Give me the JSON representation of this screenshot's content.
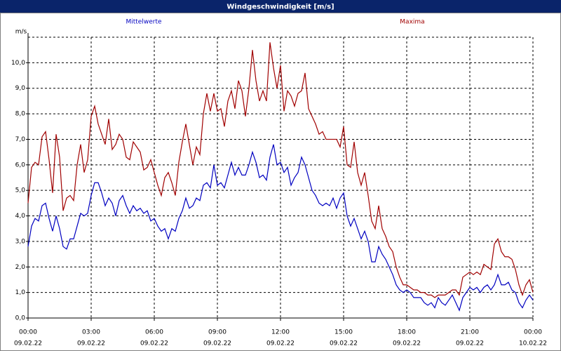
{
  "chart_data": {
    "type": "line",
    "title": "Windgeschwindigkeit [m/s]",
    "y_label": "m/s",
    "x": [
      0,
      10,
      20,
      30,
      40,
      50,
      60,
      70,
      80,
      90,
      100,
      110,
      120,
      130,
      140,
      150,
      160,
      170,
      180,
      190,
      200,
      210,
      220,
      230,
      240,
      250,
      260,
      270,
      280,
      290,
      300,
      310,
      320,
      330,
      340,
      350,
      360,
      370,
      380,
      390,
      400,
      410,
      420,
      430,
      440,
      450,
      460,
      470,
      480,
      490,
      500,
      510,
      520,
      530,
      540,
      550,
      560,
      570,
      580,
      590,
      600,
      610,
      620,
      630,
      640,
      650,
      660,
      670,
      680,
      690,
      700,
      710,
      720,
      730,
      740,
      750,
      760,
      770,
      780,
      790,
      800,
      810,
      820,
      830,
      840,
      850,
      860,
      870,
      880,
      890,
      900,
      910,
      920,
      930,
      940,
      950,
      960,
      970,
      980,
      990,
      1000,
      1010,
      1020,
      1030,
      1040,
      1050,
      1060,
      1070,
      1080,
      1090,
      1100,
      1110,
      1120,
      1130,
      1140,
      1150,
      1160,
      1170,
      1180,
      1190,
      1200,
      1210,
      1220,
      1230,
      1240,
      1250,
      1260,
      1270,
      1280,
      1290,
      1300,
      1310,
      1320,
      1330,
      1340,
      1350,
      1360,
      1370,
      1380,
      1390,
      1400,
      1410,
      1420,
      1430,
      1440
    ],
    "series": [
      {
        "name": "Mittelwerte",
        "color": "#0000c0",
        "values": [
          2.8,
          3.6,
          3.9,
          3.8,
          4.4,
          4.5,
          3.9,
          3.4,
          4.0,
          3.5,
          2.8,
          2.7,
          3.1,
          3.1,
          3.6,
          4.1,
          4.0,
          4.1,
          4.8,
          5.3,
          5.3,
          4.9,
          4.4,
          4.7,
          4.5,
          4.0,
          4.6,
          4.8,
          4.4,
          4.1,
          4.4,
          4.2,
          4.3,
          4.1,
          4.2,
          3.8,
          3.9,
          3.6,
          3.4,
          3.5,
          3.1,
          3.5,
          3.4,
          3.9,
          4.2,
          4.7,
          4.3,
          4.4,
          4.7,
          4.6,
          5.2,
          5.3,
          5.1,
          6.0,
          5.2,
          5.3,
          5.1,
          5.6,
          6.1,
          5.6,
          5.9,
          5.6,
          5.6,
          6.0,
          6.5,
          6.1,
          5.5,
          5.6,
          5.4,
          6.3,
          6.8,
          6.0,
          6.1,
          5.7,
          5.9,
          5.2,
          5.5,
          5.7,
          6.3,
          6.0,
          5.5,
          5.0,
          4.8,
          4.5,
          4.4,
          4.5,
          4.4,
          4.7,
          4.3,
          4.7,
          4.9,
          4.0,
          3.6,
          3.9,
          3.5,
          3.1,
          3.4,
          3.0,
          2.2,
          2.2,
          2.8,
          2.5,
          2.3,
          2.0,
          1.7,
          1.3,
          1.1,
          1.0,
          1.1,
          1.0,
          0.8,
          0.8,
          0.8,
          0.6,
          0.5,
          0.6,
          0.4,
          0.8,
          0.6,
          0.5,
          0.7,
          0.9,
          0.6,
          0.3,
          0.8,
          1.0,
          1.2,
          1.1,
          1.2,
          1.0,
          1.2,
          1.3,
          1.1,
          1.3,
          1.7,
          1.3,
          1.3,
          1.4,
          1.1,
          1.0,
          0.6,
          0.4,
          0.7,
          0.9,
          0.7
        ]
      },
      {
        "name": "Maxima",
        "color": "#a00000",
        "values": [
          4.5,
          5.9,
          6.1,
          6.0,
          7.1,
          7.3,
          6.2,
          4.9,
          7.2,
          6.3,
          4.2,
          4.7,
          4.8,
          4.6,
          6.0,
          6.8,
          5.7,
          6.2,
          7.9,
          8.3,
          7.6,
          7.2,
          6.8,
          7.8,
          6.6,
          6.8,
          7.2,
          7.0,
          6.3,
          6.2,
          6.9,
          6.7,
          6.5,
          5.8,
          5.9,
          6.2,
          5.7,
          5.2,
          4.8,
          5.5,
          5.7,
          5.3,
          4.8,
          6.1,
          6.9,
          7.6,
          6.8,
          6.0,
          6.7,
          6.4,
          8.0,
          8.8,
          8.1,
          8.8,
          8.1,
          8.2,
          7.5,
          8.5,
          8.9,
          8.2,
          9.3,
          8.9,
          7.9,
          9.0,
          10.5,
          9.3,
          8.5,
          8.9,
          8.5,
          10.8,
          9.8,
          9.0,
          9.9,
          8.1,
          8.9,
          8.7,
          8.3,
          8.8,
          8.9,
          9.6,
          8.2,
          7.9,
          7.6,
          7.2,
          7.3,
          7.0,
          7.0,
          7.0,
          7.0,
          6.7,
          7.5,
          6.0,
          5.9,
          6.9,
          5.7,
          5.2,
          5.7,
          4.8,
          3.8,
          3.5,
          4.4,
          3.5,
          3.2,
          2.8,
          2.6,
          2.0,
          1.6,
          1.3,
          1.3,
          1.2,
          1.1,
          1.1,
          1.0,
          1.0,
          0.9,
          0.9,
          0.8,
          0.9,
          0.9,
          0.9,
          1.0,
          1.1,
          1.1,
          0.9,
          1.6,
          1.7,
          1.8,
          1.7,
          1.8,
          1.7,
          2.1,
          2.0,
          1.9,
          2.9,
          3.1,
          2.6,
          2.4,
          2.4,
          2.3,
          1.9,
          1.3,
          0.9,
          1.3,
          1.5,
          1.0
        ]
      }
    ],
    "xlim": [
      0,
      1440
    ],
    "xticks": [
      {
        "value": 0,
        "label": "00:00",
        "date": "09.02.22"
      },
      {
        "value": 180,
        "label": "03:00",
        "date": "09.02.22"
      },
      {
        "value": 360,
        "label": "06:00",
        "date": "09.02.22"
      },
      {
        "value": 540,
        "label": "09:00",
        "date": "09.02.22"
      },
      {
        "value": 720,
        "label": "12:00",
        "date": "09.02.22"
      },
      {
        "value": 900,
        "label": "15:00",
        "date": "09.02.22"
      },
      {
        "value": 1080,
        "label": "18:00",
        "date": "09.02.22"
      },
      {
        "value": 1260,
        "label": "21:00",
        "date": "09.02.22"
      },
      {
        "value": 1440,
        "label": "00:00",
        "date": "10.02.22"
      }
    ],
    "ylim": [
      0,
      11
    ],
    "yticks": [
      {
        "value": 0,
        "label": "0,0"
      },
      {
        "value": 1,
        "label": "1,0"
      },
      {
        "value": 2,
        "label": "2,0"
      },
      {
        "value": 3,
        "label": "3,0"
      },
      {
        "value": 4,
        "label": "4,0"
      },
      {
        "value": 5,
        "label": "5,0"
      },
      {
        "value": 6,
        "label": "6,0"
      },
      {
        "value": 7,
        "label": "7,0"
      },
      {
        "value": 8,
        "label": "8,0"
      },
      {
        "value": 9,
        "label": "9,0"
      },
      {
        "value": 10,
        "label": "10,0"
      }
    ],
    "grid": true
  }
}
